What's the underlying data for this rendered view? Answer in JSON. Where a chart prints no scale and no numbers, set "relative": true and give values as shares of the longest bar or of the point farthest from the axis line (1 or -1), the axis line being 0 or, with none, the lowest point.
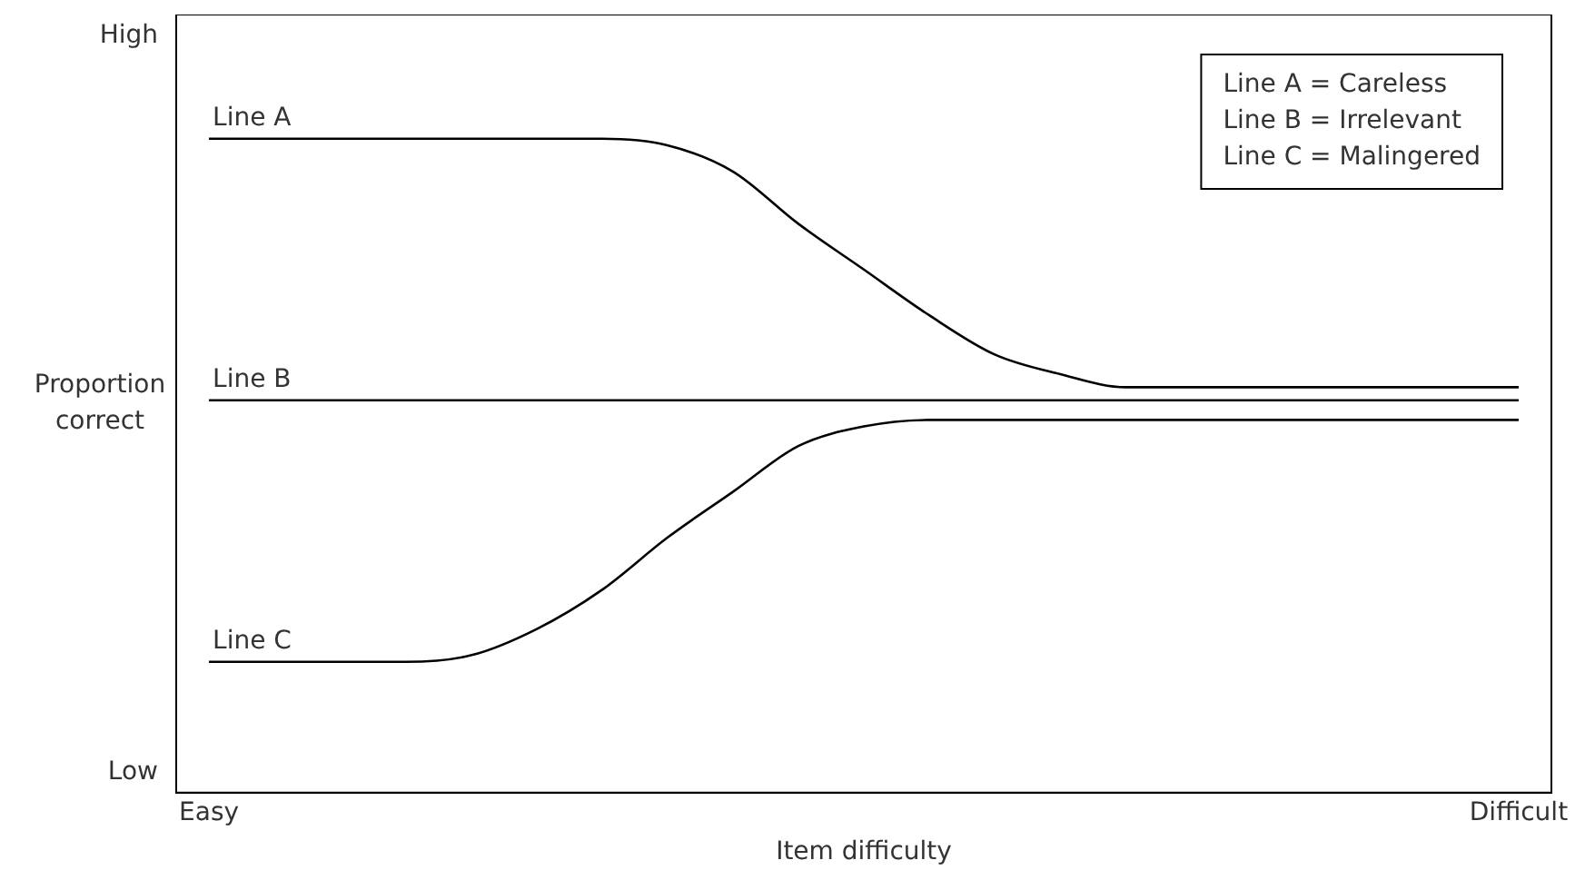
{
  "chart_data": {
    "type": "line",
    "xlabel": "Item difficulty",
    "ylabel": "Proportion correct",
    "relative": true,
    "categories": [
      "Easy",
      null,
      null,
      null,
      null,
      null,
      null,
      null,
      null,
      null,
      null,
      null,
      null,
      null,
      null,
      null,
      null,
      null,
      null,
      null,
      "Difficult"
    ],
    "grid": false,
    "legend": false,
    "marker": "none",
    "line_style": "solid",
    "annotations": [
      "High",
      "Low",
      "Line A = Careless",
      "Line B = Irrelevant",
      "Line C = Malingered"
    ],
    "series": [
      {
        "name": "Line A",
        "color": "#000000",
        "values": [
          1,
          1,
          1,
          1,
          1,
          1,
          1,
          0.99,
          0.95,
          0.87,
          0.8,
          0.73,
          0.67,
          0.64,
          0.62,
          0.62,
          0.62,
          0.62,
          0.62,
          0.62,
          0.62
        ]
      },
      {
        "name": "Line B",
        "color": "#000000",
        "values": [
          0.6,
          0.6,
          0.6,
          0.6,
          0.6,
          0.6,
          0.6,
          0.6,
          0.6,
          0.6,
          0.6,
          0.6,
          0.6,
          0.6,
          0.6,
          0.6,
          0.6,
          0.6,
          0.6,
          0.6,
          0.6
        ]
      },
      {
        "name": "Line C",
        "color": "#000000",
        "values": [
          0.2,
          0.2,
          0.2,
          0.2,
          0.21,
          0.25,
          0.31,
          0.39,
          0.46,
          0.53,
          0.56,
          0.57,
          0.57,
          0.57,
          0.57,
          0.57,
          0.57,
          0.57,
          0.57,
          0.57,
          0.57
        ]
      }
    ]
  }
}
